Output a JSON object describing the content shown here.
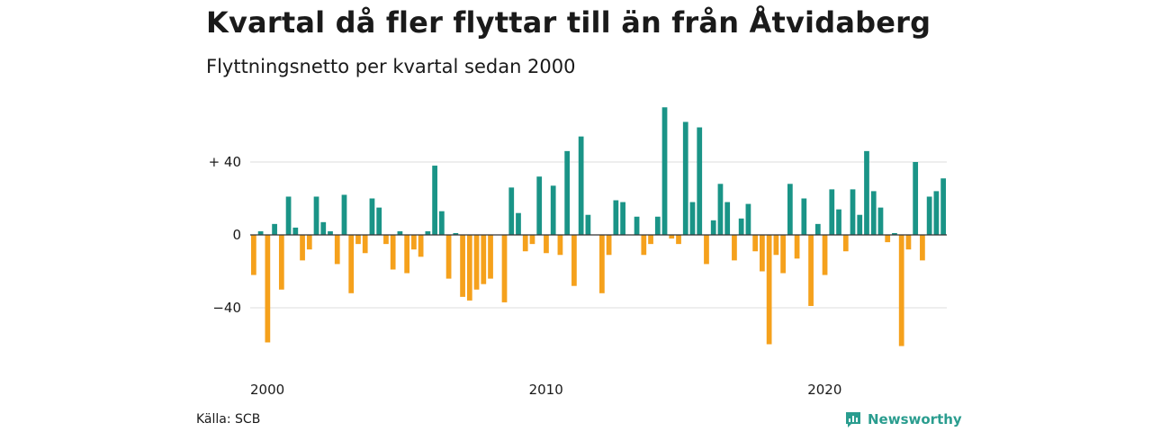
{
  "title": "Kvartal då fler flyttar till än från Åtvidaberg",
  "subtitle": "Flyttningsnetto per kvartal sedan 2000",
  "source": "Källa: SCB",
  "brand": {
    "name": "Newsworthy",
    "icon": "newsworthy-logo-icon"
  },
  "colors": {
    "positive": "#1a9487",
    "negative": "#f5a11c",
    "grid": "#dddddd",
    "zero_line": "#333333"
  },
  "chart_data": {
    "type": "bar",
    "xlabel": "",
    "ylabel": "",
    "ylim": [
      -62,
      70
    ],
    "y_ticks": [
      {
        "value": 40,
        "label": "+ 40"
      },
      {
        "value": 0,
        "label": "0"
      },
      {
        "value": -40,
        "label": "−40"
      }
    ],
    "x_ticks": [
      {
        "value": "2000",
        "label": "2000"
      },
      {
        "value": "2010",
        "label": "2010"
      },
      {
        "value": "2020",
        "label": "2020"
      }
    ],
    "grid": true,
    "start": "2000 Q1",
    "values": [
      -22,
      2,
      -59,
      6,
      -30,
      21,
      4,
      -14,
      -8,
      21,
      7,
      2,
      -16,
      22,
      -32,
      -5,
      -10,
      20,
      15,
      -5,
      -19,
      2,
      -21,
      -8,
      -12,
      2,
      38,
      13,
      -24,
      1,
      -34,
      -36,
      -30,
      -27,
      -24,
      0,
      -37,
      26,
      12,
      -9,
      -5,
      32,
      -10,
      27,
      -11,
      46,
      -28,
      54,
      11,
      0,
      -32,
      -11,
      19,
      18,
      0,
      10,
      -11,
      -5,
      10,
      70,
      -2,
      -5,
      62,
      18,
      59,
      -16,
      8,
      28,
      18,
      -14,
      9,
      17,
      -9,
      -20,
      -60,
      -11,
      -21,
      28,
      -13,
      20,
      -39,
      6,
      -22,
      25,
      14,
      -9,
      25,
      11,
      46,
      24,
      15,
      -4,
      1,
      -61,
      -8,
      40,
      -14,
      21,
      24,
      31
    ]
  }
}
